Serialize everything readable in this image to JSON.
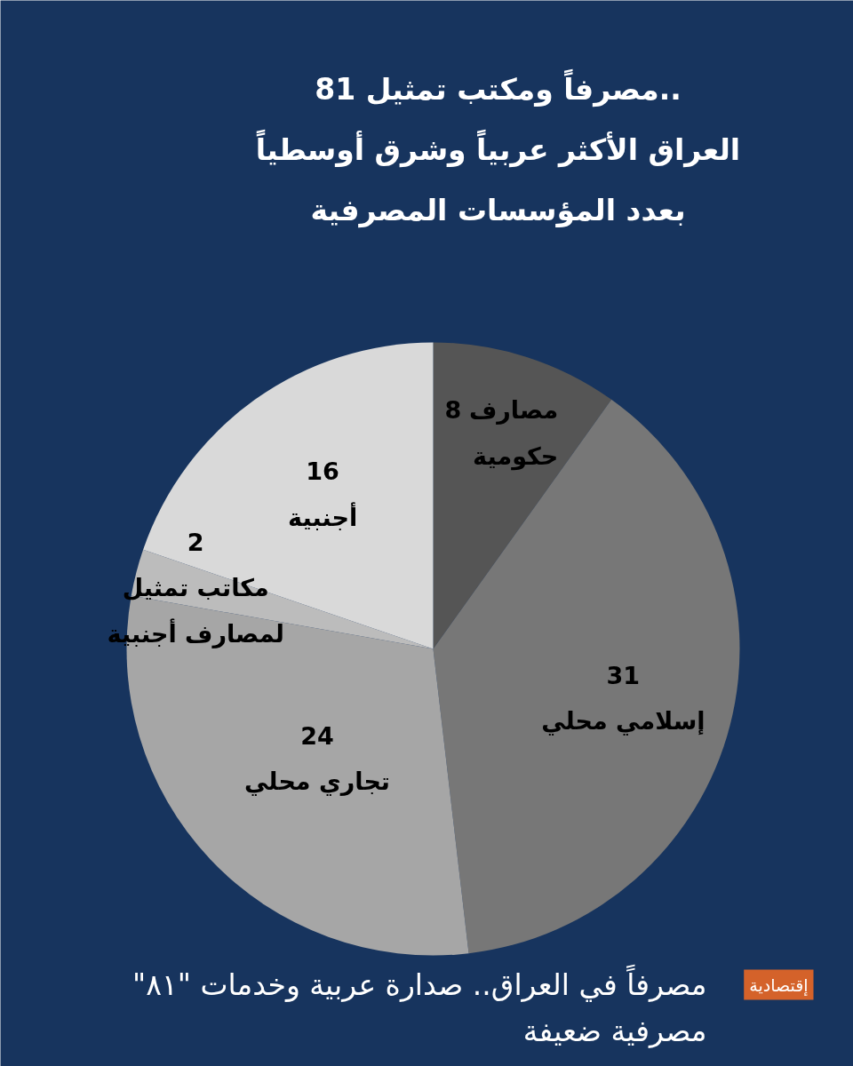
{
  "chart_data": {
    "type": "pie",
    "title": "81 مصرفاً ومكتب تمثيل.. العراق الأكثر عربياً وشرق أوسطياً بعدد المؤسسات المصرفية",
    "categories": [
      "مصارف حكومية",
      "إسلامي محلي",
      "تجاري محلي",
      "مكاتب تمثيل لمصارف أجنبية",
      "أجنبية"
    ],
    "values": [
      8,
      31,
      24,
      2,
      16
    ],
    "colors": [
      "#555555",
      "#777777",
      "#a6a6a6",
      "#bcbcbc",
      "#d9d9d9"
    ],
    "data_labels": true,
    "annotations": [
      "إقتصادية",
      "مصرفاً في العراق.. صدارة عربية وخدمات \"٨١\" مصرفية ضعيفة"
    ]
  }
}
